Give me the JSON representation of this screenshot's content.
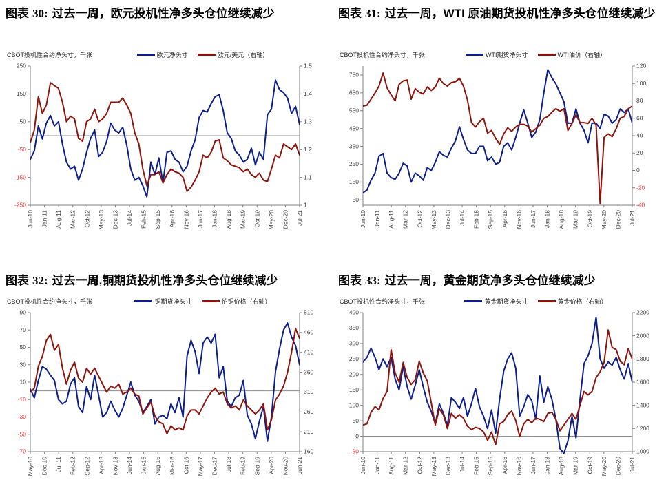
{
  "colors": {
    "primary_series": "#0b1e8c",
    "secondary_series": "#8e130b",
    "negative_tick": "#ff3333",
    "tick_label": "#404040",
    "axis_line": "#808080",
    "zero_line": "#8c8c8c",
    "title": "#000000"
  },
  "chart_data": [
    {
      "type": "line",
      "fig_prefix": "图表",
      "fig_number": "30:",
      "title": "过去一周，欧元投机性净多头仓位继续减少",
      "unit_label": "CBOT投机性合约净头寸，千张",
      "legend": [
        {
          "label": "欧元净头寸",
          "color": "#0b1e8c"
        },
        {
          "label": "欧元/美元（右轴）",
          "color": "#8e130b"
        }
      ],
      "x_labels": [
        "Jun-10",
        "Jan-11",
        "Aug-11",
        "Mar-12",
        "Oct-12",
        "May-13",
        "Dec-13",
        "Jul-14",
        "Feb-15",
        "Sep-15",
        "Apr-16",
        "Nov-16",
        "Jun-17",
        "Jan-18",
        "Aug-18",
        "Mar-19",
        "Oct-19",
        "May-20",
        "Dec-20",
        "Jul-21"
      ],
      "left_axis": {
        "min": -250,
        "max": 250,
        "ticks": [
          250,
          150,
          50,
          -50,
          -150,
          -250
        ]
      },
      "right_axis": {
        "min": 1,
        "max": 1.5,
        "ticks": [
          "1.5",
          "1.4",
          "1.3",
          "1.2",
          "1.1",
          "1"
        ]
      },
      "zero_line": true,
      "series": [
        {
          "name": "欧元净头寸",
          "axis": "left",
          "color": "#0b1e8c",
          "values": [
            -85,
            -55,
            35,
            -12,
            45,
            72,
            35,
            50,
            -30,
            -95,
            -120,
            -110,
            -160,
            -120,
            -60,
            -10,
            20,
            -75,
            -60,
            -20,
            45,
            20,
            10,
            30,
            -35,
            -120,
            -160,
            -150,
            -180,
            -220,
            -95,
            -140,
            -80,
            -170,
            -60,
            -55,
            -85,
            -95,
            -130,
            -110,
            -55,
            -15,
            65,
            90,
            85,
            115,
            140,
            147,
            90,
            10,
            -10,
            -55,
            -70,
            -95,
            -85,
            -45,
            -105,
            -60,
            -85,
            75,
            95,
            200,
            165,
            155,
            135,
            80,
            105,
            40
          ]
        },
        {
          "name": "欧元/美元（右轴）",
          "axis": "right",
          "color": "#8e130b",
          "values": [
            1.225,
            1.27,
            1.39,
            1.33,
            1.36,
            1.44,
            1.43,
            1.42,
            1.37,
            1.3,
            1.32,
            1.31,
            1.24,
            1.23,
            1.3,
            1.31,
            1.345,
            1.3,
            1.31,
            1.33,
            1.37,
            1.37,
            1.37,
            1.385,
            1.36,
            1.33,
            1.26,
            1.22,
            1.13,
            1.07,
            1.11,
            1.11,
            1.12,
            1.08,
            1.11,
            1.13,
            1.12,
            1.115,
            1.1,
            1.05,
            1.065,
            1.09,
            1.12,
            1.18,
            1.17,
            1.19,
            1.23,
            1.235,
            1.17,
            1.16,
            1.145,
            1.14,
            1.135,
            1.12,
            1.13,
            1.11,
            1.1,
            1.115,
            1.09,
            1.085,
            1.13,
            1.18,
            1.17,
            1.22,
            1.21,
            1.2,
            1.22,
            1.18
          ]
        }
      ]
    },
    {
      "type": "line",
      "fig_prefix": "图表",
      "fig_number": "31:",
      "title": "过去一周，WTI 原油期货投机性净多头仓位继续减少",
      "unit_label": "CBOT投机性合约净头寸，千张",
      "legend": [
        {
          "label": "WTI期货净头寸",
          "color": "#0b1e8c"
        },
        {
          "label": "WTI油价（右轴）",
          "color": "#8e130b"
        }
      ],
      "x_labels": [
        "Jun-10",
        "Jan-11",
        "Aug-11",
        "Mar-12",
        "Oct-12",
        "May-13",
        "Dec-13",
        "Jul-14",
        "Feb-15",
        "Sep-15",
        "Apr-16",
        "Nov-16",
        "Jun-17",
        "Jan-18",
        "Aug-18",
        "Mar-19",
        "Oct-19",
        "May-20",
        "Dec-20",
        "Jul-21"
      ],
      "left_axis": {
        "min": 20,
        "max": 800,
        "ticks": [
          750,
          650,
          550,
          450,
          350,
          250,
          150,
          50
        ]
      },
      "right_axis": {
        "min": -40,
        "max": 120,
        "ticks": [
          120,
          100,
          80,
          60,
          40,
          20,
          0,
          -20,
          -40
        ]
      },
      "zero_line": false,
      "series": [
        {
          "name": "WTI期货净头寸",
          "axis": "left",
          "color": "#0b1e8c",
          "values": [
            90,
            105,
            160,
            200,
            295,
            310,
            200,
            175,
            165,
            200,
            255,
            240,
            150,
            200,
            185,
            160,
            230,
            215,
            260,
            320,
            300,
            290,
            340,
            380,
            460,
            390,
            330,
            310,
            310,
            350,
            350,
            270,
            290,
            250,
            260,
            350,
            370,
            330,
            400,
            480,
            555,
            480,
            400,
            430,
            500,
            650,
            780,
            735,
            700,
            650,
            600,
            480,
            480,
            560,
            480,
            440,
            370,
            480,
            480,
            450,
            530,
            520,
            480,
            500,
            560,
            540,
            560,
            480
          ]
        },
        {
          "name": "WTI油价（右轴）",
          "axis": "right",
          "color": "#8e130b",
          "values": [
            74,
            75,
            82,
            89,
            97,
            112,
            95,
            87,
            80,
            99,
            103,
            104,
            82,
            94,
            90,
            88,
            96,
            92,
            96,
            106,
            100,
            97,
            101,
            102,
            106,
            97,
            81,
            55,
            50,
            56,
            60,
            43,
            46,
            37,
            30,
            42,
            49,
            45,
            50,
            53,
            53,
            51,
            44,
            48,
            52,
            60,
            62,
            67,
            71,
            68,
            71,
            46,
            54,
            64,
            55,
            55,
            54,
            60,
            52,
            -38,
            38,
            42,
            39,
            48,
            60,
            62,
            71,
            74
          ]
        }
      ]
    },
    {
      "type": "line",
      "fig_prefix": "图表",
      "fig_number": "32:",
      "title": "过去一周,铜期货投机性净多头仓位继续减少",
      "unit_label": "CBOT投机性合约净头寸，千张",
      "legend": [
        {
          "label": "铜期货净头寸",
          "color": "#0b1e8c"
        },
        {
          "label": "伦铜价格（右轴）",
          "color": "#8e130b"
        }
      ],
      "x_labels": [
        "May-10",
        "Dec-10",
        "Jul-11",
        "Feb-12",
        "Sep-12",
        "Apr-13",
        "Nov-13",
        "Jun-14",
        "Jan-15",
        "Aug-15",
        "Mar-16",
        "Oct-16",
        "May-17",
        "Dec-17",
        "Jul-18",
        "Feb-19",
        "Sep-19",
        "Apr-20",
        "Nov-20",
        "Jun-21"
      ],
      "left_axis": {
        "min": -70,
        "max": 90,
        "ticks": [
          90,
          70,
          50,
          30,
          10,
          -10,
          -30,
          -50,
          -70
        ]
      },
      "right_axis": {
        "min": 160,
        "max": 510,
        "ticks": [
          510,
          460,
          410,
          360,
          310,
          260,
          210,
          160
        ]
      },
      "zero_line": true,
      "series": [
        {
          "name": "铜期货净头寸",
          "axis": "left",
          "color": "#0b1e8c",
          "values": [
            2,
            -8,
            12,
            28,
            25,
            18,
            12,
            -10,
            -15,
            -12,
            8,
            15,
            -18,
            -25,
            5,
            -10,
            18,
            -5,
            -30,
            -25,
            -12,
            -22,
            -30,
            -20,
            -5,
            10,
            -5,
            -12,
            -25,
            -18,
            -10,
            -38,
            -30,
            -28,
            -32,
            -15,
            -25,
            -8,
            -30,
            40,
            58,
            45,
            20,
            55,
            62,
            55,
            65,
            15,
            28,
            -12,
            -18,
            -8,
            -5,
            12,
            -28,
            -38,
            -55,
            -35,
            -18,
            -58,
            -30,
            22,
            48,
            70,
            78,
            62,
            52,
            30
          ]
        },
        {
          "name": "伦铜价格（右轴）",
          "axis": "right",
          "color": "#8e130b",
          "values": [
            310,
            320,
            375,
            400,
            440,
            455,
            415,
            430,
            370,
            330,
            365,
            385,
            345,
            335,
            370,
            355,
            370,
            350,
            330,
            310,
            325,
            320,
            330,
            305,
            310,
            320,
            305,
            300,
            255,
            270,
            285,
            250,
            235,
            230,
            205,
            225,
            215,
            220,
            215,
            250,
            265,
            265,
            255,
            275,
            295,
            310,
            320,
            305,
            310,
            280,
            270,
            275,
            265,
            290,
            275,
            265,
            255,
            265,
            280,
            215,
            240,
            290,
            305,
            325,
            360,
            410,
            470,
            445
          ]
        }
      ]
    },
    {
      "type": "line",
      "fig_prefix": "图表",
      "fig_number": "33:",
      "title": "过去一周，黄金期货净多头仓位继续减少",
      "unit_label": "CBOT投机性合约净头寸，千张",
      "legend": [
        {
          "label": "黄金期货净头寸",
          "color": "#0b1e8c"
        },
        {
          "label": "黄金价格（右轴）",
          "color": "#8e130b"
        }
      ],
      "x_labels": [
        "Jun-10",
        "Jan-11",
        "Aug-11",
        "Mar-12",
        "Oct-12",
        "May-13",
        "Dec-13",
        "Jul-14",
        "Feb-15",
        "Sep-15",
        "Apr-16",
        "Nov-16",
        "Jun-17",
        "Jan-18",
        "Aug-18",
        "Mar-19",
        "Oct-19",
        "May-20",
        "Dec-20",
        "Jul-21"
      ],
      "left_axis": {
        "min": -50,
        "max": 400,
        "ticks": [
          400,
          350,
          300,
          250,
          200,
          150,
          100,
          50,
          0,
          -50
        ]
      },
      "right_axis": {
        "min": 1000,
        "max": 2200,
        "ticks": [
          2200,
          2000,
          1800,
          1600,
          1400,
          1200,
          1000
        ]
      },
      "zero_line": true,
      "series": [
        {
          "name": "黄金期货净头寸",
          "axis": "left",
          "color": "#0b1e8c",
          "values": [
            240,
            255,
            285,
            255,
            215,
            250,
            225,
            255,
            185,
            150,
            225,
            160,
            120,
            165,
            215,
            160,
            110,
            80,
            40,
            105,
            75,
            35,
            125,
            110,
            90,
            125,
            65,
            105,
            155,
            95,
            65,
            25,
            85,
            10,
            120,
            210,
            250,
            270,
            220,
            65,
            95,
            135,
            115,
            55,
            195,
            110,
            160,
            120,
            55,
            -40,
            -55,
            -15,
            65,
            -5,
            120,
            235,
            260,
            300,
            385,
            250,
            220,
            240,
            230,
            255,
            215,
            185,
            235,
            175
          ]
        },
        {
          "name": "黄金价格（右轴）",
          "axis": "right",
          "color": "#8e130b",
          "values": [
            1230,
            1240,
            1340,
            1390,
            1360,
            1460,
            1520,
            1880,
            1680,
            1600,
            1770,
            1640,
            1580,
            1620,
            1780,
            1680,
            1610,
            1420,
            1230,
            1370,
            1320,
            1200,
            1330,
            1290,
            1320,
            1290,
            1220,
            1190,
            1210,
            1200,
            1170,
            1100,
            1170,
            1060,
            1240,
            1260,
            1320,
            1350,
            1270,
            1130,
            1240,
            1280,
            1250,
            1290,
            1280,
            1260,
            1330,
            1340,
            1280,
            1180,
            1230,
            1280,
            1330,
            1280,
            1400,
            1520,
            1490,
            1520,
            1640,
            1690,
            1770,
            2050,
            1900,
            1880,
            1780,
            1750,
            1890,
            1800
          ]
        }
      ]
    }
  ]
}
